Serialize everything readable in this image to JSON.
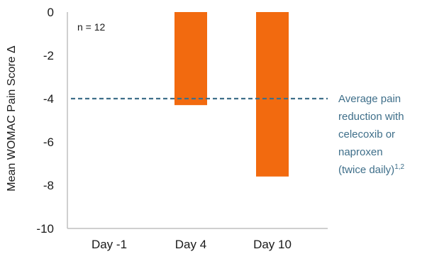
{
  "chart_data": {
    "type": "bar",
    "ylabel": "Mean WOMAC Pain Score Δ",
    "ylim": [
      -10,
      0
    ],
    "yticks": [
      0,
      -2,
      -4,
      -6,
      -8,
      -10
    ],
    "categories": [
      "Day -1",
      "Day 4",
      "Day 10"
    ],
    "values": [
      0,
      -4.3,
      -7.6
    ],
    "grid": false,
    "annotation": "n = 12",
    "reference_line": {
      "value": -4,
      "label_lines": [
        "Average pain",
        "reduction with",
        "celecoxib or",
        "naproxen",
        "(twice daily)"
      ],
      "superscript": "1,2",
      "color": "#3f6f8a"
    },
    "bar_color": "#f26a0f",
    "axis_color": "#bfbfbf"
  }
}
